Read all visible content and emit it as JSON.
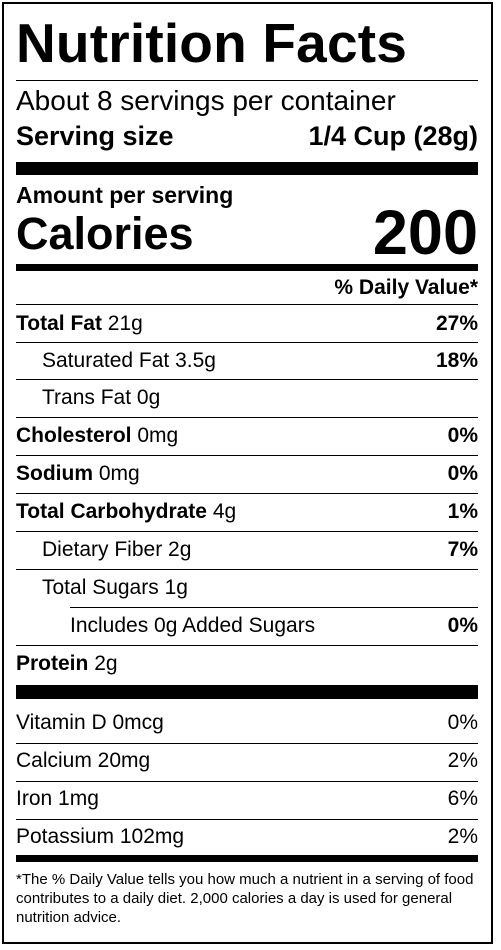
{
  "label": {
    "title": "Nutrition Facts",
    "servings": "About 8 servings per container",
    "serving_size_label": "Serving size",
    "serving_size_value": "1/4 Cup (28g)",
    "amount_per_serving": "Amount per serving",
    "calories_label": "Calories",
    "calories_value": "200",
    "daily_value_header": "% Daily Value*"
  },
  "nutrients": [
    {
      "name": "Total Fat",
      "amount": "21g",
      "dv": "27%"
    },
    {
      "name": "Saturated Fat",
      "amount": "3.5g",
      "dv": "18%"
    },
    {
      "name": "Trans Fat",
      "amount": "0g",
      "dv": ""
    },
    {
      "name": "Cholesterol",
      "amount": "0mg",
      "dv": "0%"
    },
    {
      "name": "Sodium",
      "amount": "0mg",
      "dv": "0%"
    },
    {
      "name": "Total Carbohydrate",
      "amount": "4g",
      "dv": "1%"
    },
    {
      "name": "Dietary Fiber",
      "amount": "2g",
      "dv": "7%"
    },
    {
      "name": "Total Sugars",
      "amount": "1g",
      "dv": ""
    },
    {
      "name": "Includes 0g Added Sugars",
      "amount": "",
      "dv": "0%"
    },
    {
      "name": "Protein",
      "amount": "2g",
      "dv": ""
    }
  ],
  "vitamins": [
    {
      "name": "Vitamin D 0mcg",
      "dv": "0%"
    },
    {
      "name": "Calcium 20mg",
      "dv": "2%"
    },
    {
      "name": "Iron 1mg",
      "dv": "6%"
    },
    {
      "name": "Potassium 102mg",
      "dv": "2%"
    }
  ],
  "footnote": "*The % Daily Value tells you how much a nutrient in a serving of food contributes to a daily diet. 2,000 calories a day is used for general nutrition advice."
}
